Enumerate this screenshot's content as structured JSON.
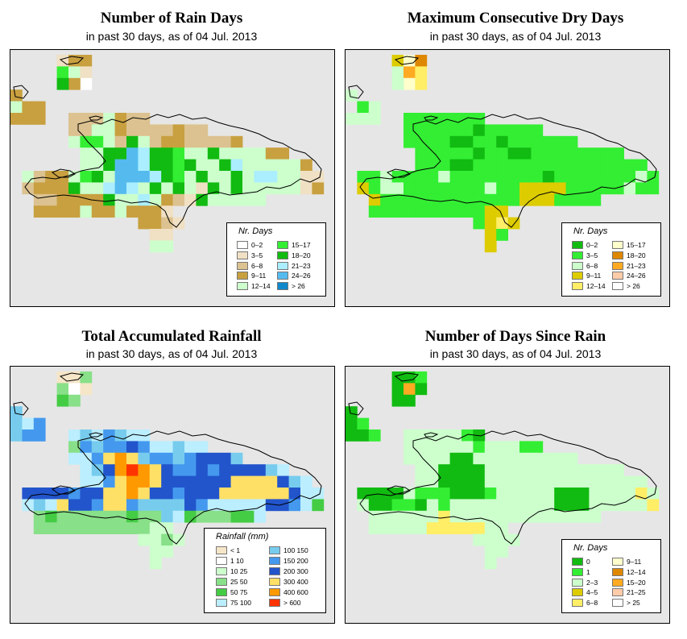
{
  "panels": [
    {
      "id": "rain-days",
      "title": "Number of Rain Days",
      "subtitle": "in past 30 days, as of  04 Jul. 2013",
      "legend": {
        "title": "Nr. Days",
        "items": [
          {
            "label": "0–2",
            "color": "#ffffff"
          },
          {
            "label": "3–5",
            "color": "#f0e0c4"
          },
          {
            "label": "6–8",
            "color": "#dcc290"
          },
          {
            "label": "9–11",
            "color": "#c8a040"
          },
          {
            "label": "12–14",
            "color": "#ccffcc"
          },
          {
            "label": "15–17",
            "color": "#33ee33"
          },
          {
            "label": "18–20",
            "color": "#11bb11"
          },
          {
            "label": "21–23",
            "color": "#aaeeff"
          },
          {
            "label": "24–26",
            "color": "#55bbee"
          },
          {
            "label": "> 26",
            "color": "#1188cc"
          }
        ]
      }
    },
    {
      "id": "dry-days",
      "title": "Maximum Consecutive Dry Days",
      "subtitle": "in past 30 days, as of  04 Jul. 2013",
      "legend": {
        "title": "Nr. Days",
        "items": [
          {
            "label": "0–2",
            "color": "#11bb11"
          },
          {
            "label": "3–5",
            "color": "#33ee33"
          },
          {
            "label": "6–8",
            "color": "#ccffcc"
          },
          {
            "label": "9–11",
            "color": "#ddcc00"
          },
          {
            "label": "12–14",
            "color": "#ffee66"
          },
          {
            "label": "15–17",
            "color": "#ffffcc"
          },
          {
            "label": "18–20",
            "color": "#dd8800"
          },
          {
            "label": "21–23",
            "color": "#ffaa22"
          },
          {
            "label": "24–26",
            "color": "#ffccaa"
          },
          {
            "label": "> 26",
            "color": "#ffffff"
          }
        ]
      }
    },
    {
      "id": "rainfall",
      "title": "Total Accumulated Rainfall",
      "subtitle": "in past 30 days, as of  04 Jul. 2013",
      "legend": {
        "title": "Rainfall (mm)",
        "items": [
          {
            "label": "< 1",
            "color": "#f6e6c8"
          },
          {
            "label": "1  10",
            "color": "#ffffff"
          },
          {
            "label": "10  25",
            "color": "#ccffcc"
          },
          {
            "label": "25  50",
            "color": "#88e088"
          },
          {
            "label": "50  75",
            "color": "#44cc44"
          },
          {
            "label": "75  100",
            "color": "#bbeeff"
          },
          {
            "label": "100  150",
            "color": "#77ccee"
          },
          {
            "label": "150  200",
            "color": "#4499ee"
          },
          {
            "label": "200  300",
            "color": "#2255cc"
          },
          {
            "label": "300  400",
            "color": "#ffe066"
          },
          {
            "label": "400  600",
            "color": "#ff9900"
          },
          {
            "label": "> 600",
            "color": "#ff3300"
          }
        ]
      }
    },
    {
      "id": "since-rain",
      "title": "Number of Days Since Rain",
      "subtitle": "in past 30 days, as of  04 Jul. 2013",
      "legend": {
        "title": "Nr. Days",
        "items": [
          {
            "label": "0",
            "color": "#11bb11"
          },
          {
            "label": "1",
            "color": "#33ee33"
          },
          {
            "label": "2–3",
            "color": "#ccffcc"
          },
          {
            "label": "4–5",
            "color": "#ddcc00"
          },
          {
            "label": "6–8",
            "color": "#ffee66"
          },
          {
            "label": "9–11",
            "color": "#ffffcc"
          },
          {
            "label": "12–14",
            "color": "#dd8800"
          },
          {
            "label": "15–20",
            "color": "#ffaa22"
          },
          {
            "label": "21–25",
            "color": "#ffccaa"
          },
          {
            "label": "> 25",
            "color": "#ffffff"
          }
        ]
      }
    }
  ]
}
